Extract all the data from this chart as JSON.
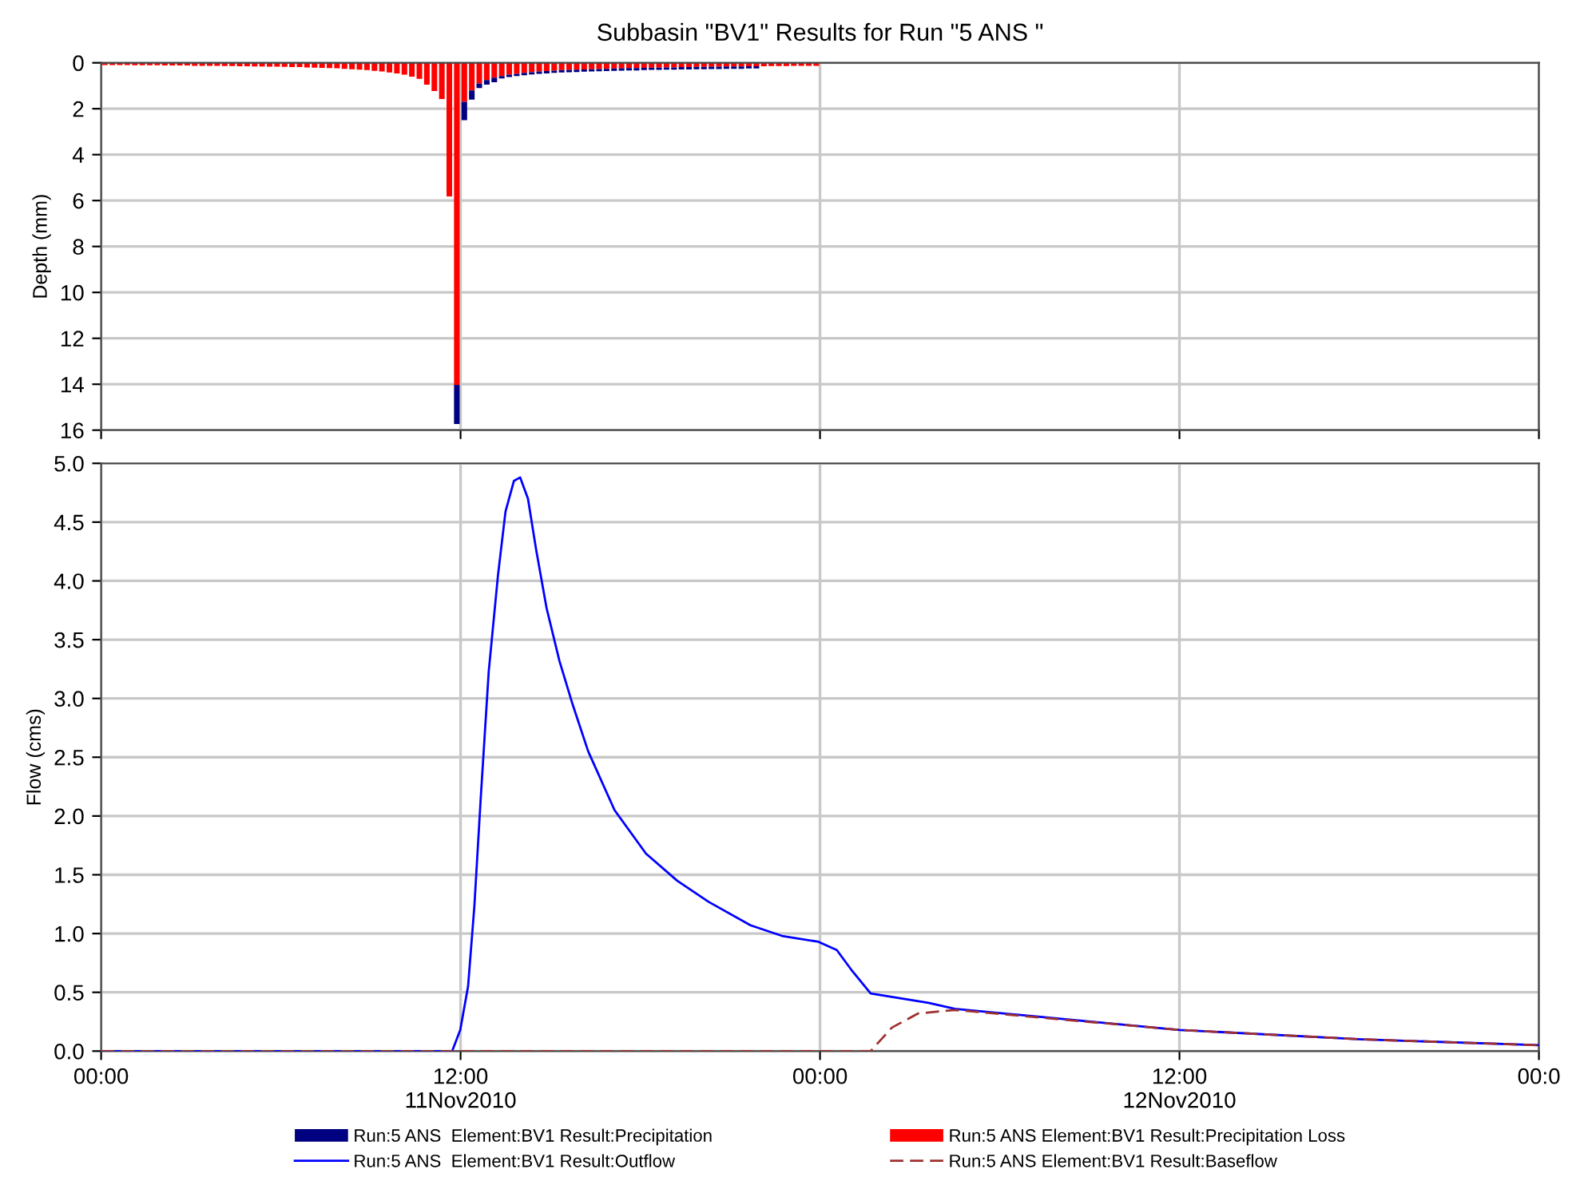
{
  "chart_data": [
    {
      "type": "bar",
      "title": "Subbasin \"BV1\" Results for Run \"5 ANS \"",
      "ylabel": "Depth (mm)",
      "x": [
        0.125,
        0.375,
        0.625,
        0.875,
        1.125,
        1.375,
        1.625,
        1.875,
        2.125,
        2.375,
        2.625,
        2.875,
        3.125,
        3.375,
        3.625,
        3.875,
        4.125,
        4.375,
        4.625,
        4.875,
        5.125,
        5.375,
        5.625,
        5.875,
        6.125,
        6.375,
        6.625,
        6.875,
        7.125,
        7.375,
        7.625,
        7.875,
        8.125,
        8.375,
        8.625,
        8.875,
        9.125,
        9.375,
        9.625,
        9.875,
        10.125,
        10.375,
        10.625,
        10.875,
        11.125,
        11.375,
        11.625,
        11.875,
        12.125,
        12.375,
        12.625,
        12.875,
        13.125,
        13.375,
        13.625,
        13.875,
        14.125,
        14.375,
        14.625,
        14.875,
        15.125,
        15.375,
        15.625,
        15.875,
        16.125,
        16.375,
        16.625,
        16.875,
        17.125,
        17.375,
        17.625,
        17.875,
        18.125,
        18.375,
        18.625,
        18.875,
        19.125,
        19.375,
        19.625,
        19.875,
        20.125,
        20.375,
        20.625,
        20.875,
        21.125,
        21.375,
        21.625,
        21.875,
        22.125,
        22.375,
        22.625,
        22.875,
        23.125,
        23.375,
        23.625,
        23.875
      ],
      "series": [
        {
          "name": "Run:5 ANS Element:BV1 Result:Precipitation Loss",
          "color": "#ff0000",
          "values": [
            0.1,
            0.1,
            0.1,
            0.1,
            0.11,
            0.11,
            0.11,
            0.11,
            0.12,
            0.12,
            0.12,
            0.12,
            0.13,
            0.13,
            0.13,
            0.13,
            0.14,
            0.14,
            0.15,
            0.15,
            0.16,
            0.16,
            0.17,
            0.17,
            0.18,
            0.19,
            0.19,
            0.2,
            0.21,
            0.22,
            0.23,
            0.24,
            0.26,
            0.28,
            0.3,
            0.32,
            0.35,
            0.38,
            0.42,
            0.46,
            0.52,
            0.6,
            0.7,
            0.95,
            1.23,
            1.58,
            5.82,
            14.03,
            1.7,
            1.2,
            0.9,
            0.75,
            0.65,
            0.58,
            0.52,
            0.48,
            0.44,
            0.41,
            0.38,
            0.36,
            0.34,
            0.32,
            0.31,
            0.3,
            0.29,
            0.28,
            0.27,
            0.26,
            0.25,
            0.24,
            0.23,
            0.23,
            0.22,
            0.21,
            0.21,
            0.2,
            0.2,
            0.19,
            0.19,
            0.18,
            0.18,
            0.17,
            0.17,
            0.16,
            0.16,
            0.16,
            0.15,
            0.15,
            0.15,
            0.14,
            0.14,
            0.14,
            0.13,
            0.13,
            0.13,
            0.13
          ]
        },
        {
          "name": "Run:5 ANS  Element:BV1 Result:Precipitation",
          "color": "#000080",
          "values": [
            null,
            null,
            null,
            null,
            null,
            null,
            null,
            null,
            null,
            null,
            null,
            null,
            null,
            null,
            null,
            null,
            null,
            null,
            null,
            null,
            null,
            null,
            null,
            null,
            null,
            null,
            null,
            null,
            null,
            null,
            null,
            null,
            null,
            null,
            null,
            null,
            null,
            null,
            null,
            null,
            null,
            null,
            null,
            null,
            null,
            null,
            null,
            1.7,
            0.8,
            0.4,
            0.2,
            0.2,
            0.2,
            0.1,
            0.1,
            0.1,
            0.1,
            0.1,
            0.1,
            0.1,
            0.1,
            0.1,
            0.1,
            0.1,
            0.1,
            0.1,
            0.1,
            0.1,
            0.1,
            0.1,
            0.1,
            0.1,
            0.1,
            0.1,
            0.1,
            0.1,
            0.1,
            0.1,
            0.1,
            0.1,
            0.1,
            0.1,
            0.1,
            0.1,
            0.1,
            0.1,
            0.1,
            0.1,
            null,
            null,
            null,
            null,
            null,
            null,
            null,
            null
          ]
        }
      ],
      "stacked": true,
      "xlim": [
        0,
        48
      ],
      "xticks": [
        0,
        12,
        24,
        36,
        48
      ],
      "ylim": [
        16,
        0
      ],
      "yticks": [
        0,
        2,
        4,
        6,
        8,
        10,
        12,
        14,
        16
      ],
      "tick_labels": "y",
      "grid": true,
      "legend": "bottom"
    },
    {
      "type": "line",
      "ylabel": "Flow (cms)",
      "series": [
        {
          "name": "Run:5 ANS  Element:BV1 Result:Outflow",
          "color": "#0000ff",
          "line_style": "solid",
          "x": [
            0,
            11.72,
            11.99,
            12.25,
            12.46,
            12.68,
            12.94,
            13.25,
            13.5,
            13.78,
            13.99,
            14.25,
            14.52,
            14.87,
            15.3,
            15.74,
            16.26,
            17.14,
            18.19,
            19.23,
            20.28,
            21.68,
            22.73,
            23.95,
            24.56,
            25.08,
            25.69,
            27.62,
            28.5,
            36,
            42.1,
            48
          ],
          "values": [
            0,
            0,
            0.18,
            0.55,
            1.23,
            2.18,
            3.23,
            4.05,
            4.59,
            4.85,
            4.88,
            4.7,
            4.27,
            3.77,
            3.32,
            2.95,
            2.55,
            2.05,
            1.68,
            1.45,
            1.27,
            1.07,
            0.98,
            0.93,
            0.86,
            0.68,
            0.49,
            0.41,
            0.36,
            0.18,
            0.1,
            0.05
          ]
        },
        {
          "name": "Run:5 ANS Element:BV1 Result:Baseflow",
          "color": "#a03030",
          "line_style": "dashed",
          "x": [
            0,
            25.69,
            26.4,
            27.27,
            28.5,
            36,
            42.1,
            48
          ],
          "values": [
            0,
            0,
            0.2,
            0.32,
            0.35,
            0.18,
            0.1,
            0.05
          ]
        }
      ],
      "xlim": [
        0,
        48
      ],
      "xticks": [
        {
          "value": 0,
          "label": "00:00"
        },
        {
          "value": 12,
          "label": "12:00\n11Nov2010"
        },
        {
          "value": 24,
          "label": "00:00"
        },
        {
          "value": 36,
          "label": "12:00\n12Nov2010"
        },
        {
          "value": 48,
          "label": "00:0"
        }
      ],
      "ylim": [
        0,
        5
      ],
      "yticks": [
        {
          "value": 0,
          "label": "0.0"
        },
        {
          "value": 0.5,
          "label": "0.5"
        },
        {
          "value": 1,
          "label": "1.0"
        },
        {
          "value": 1.5,
          "label": "1.5"
        },
        {
          "value": 2,
          "label": "2.0"
        },
        {
          "value": 2.5,
          "label": "2.5"
        },
        {
          "value": 3,
          "label": "3.0"
        },
        {
          "value": 3.5,
          "label": "3.5"
        },
        {
          "value": 4,
          "label": "4.0"
        },
        {
          "value": 4.5,
          "label": "4.5"
        },
        {
          "value": 5,
          "label": "5.0"
        }
      ],
      "grid": true,
      "legend": "bottom"
    }
  ]
}
